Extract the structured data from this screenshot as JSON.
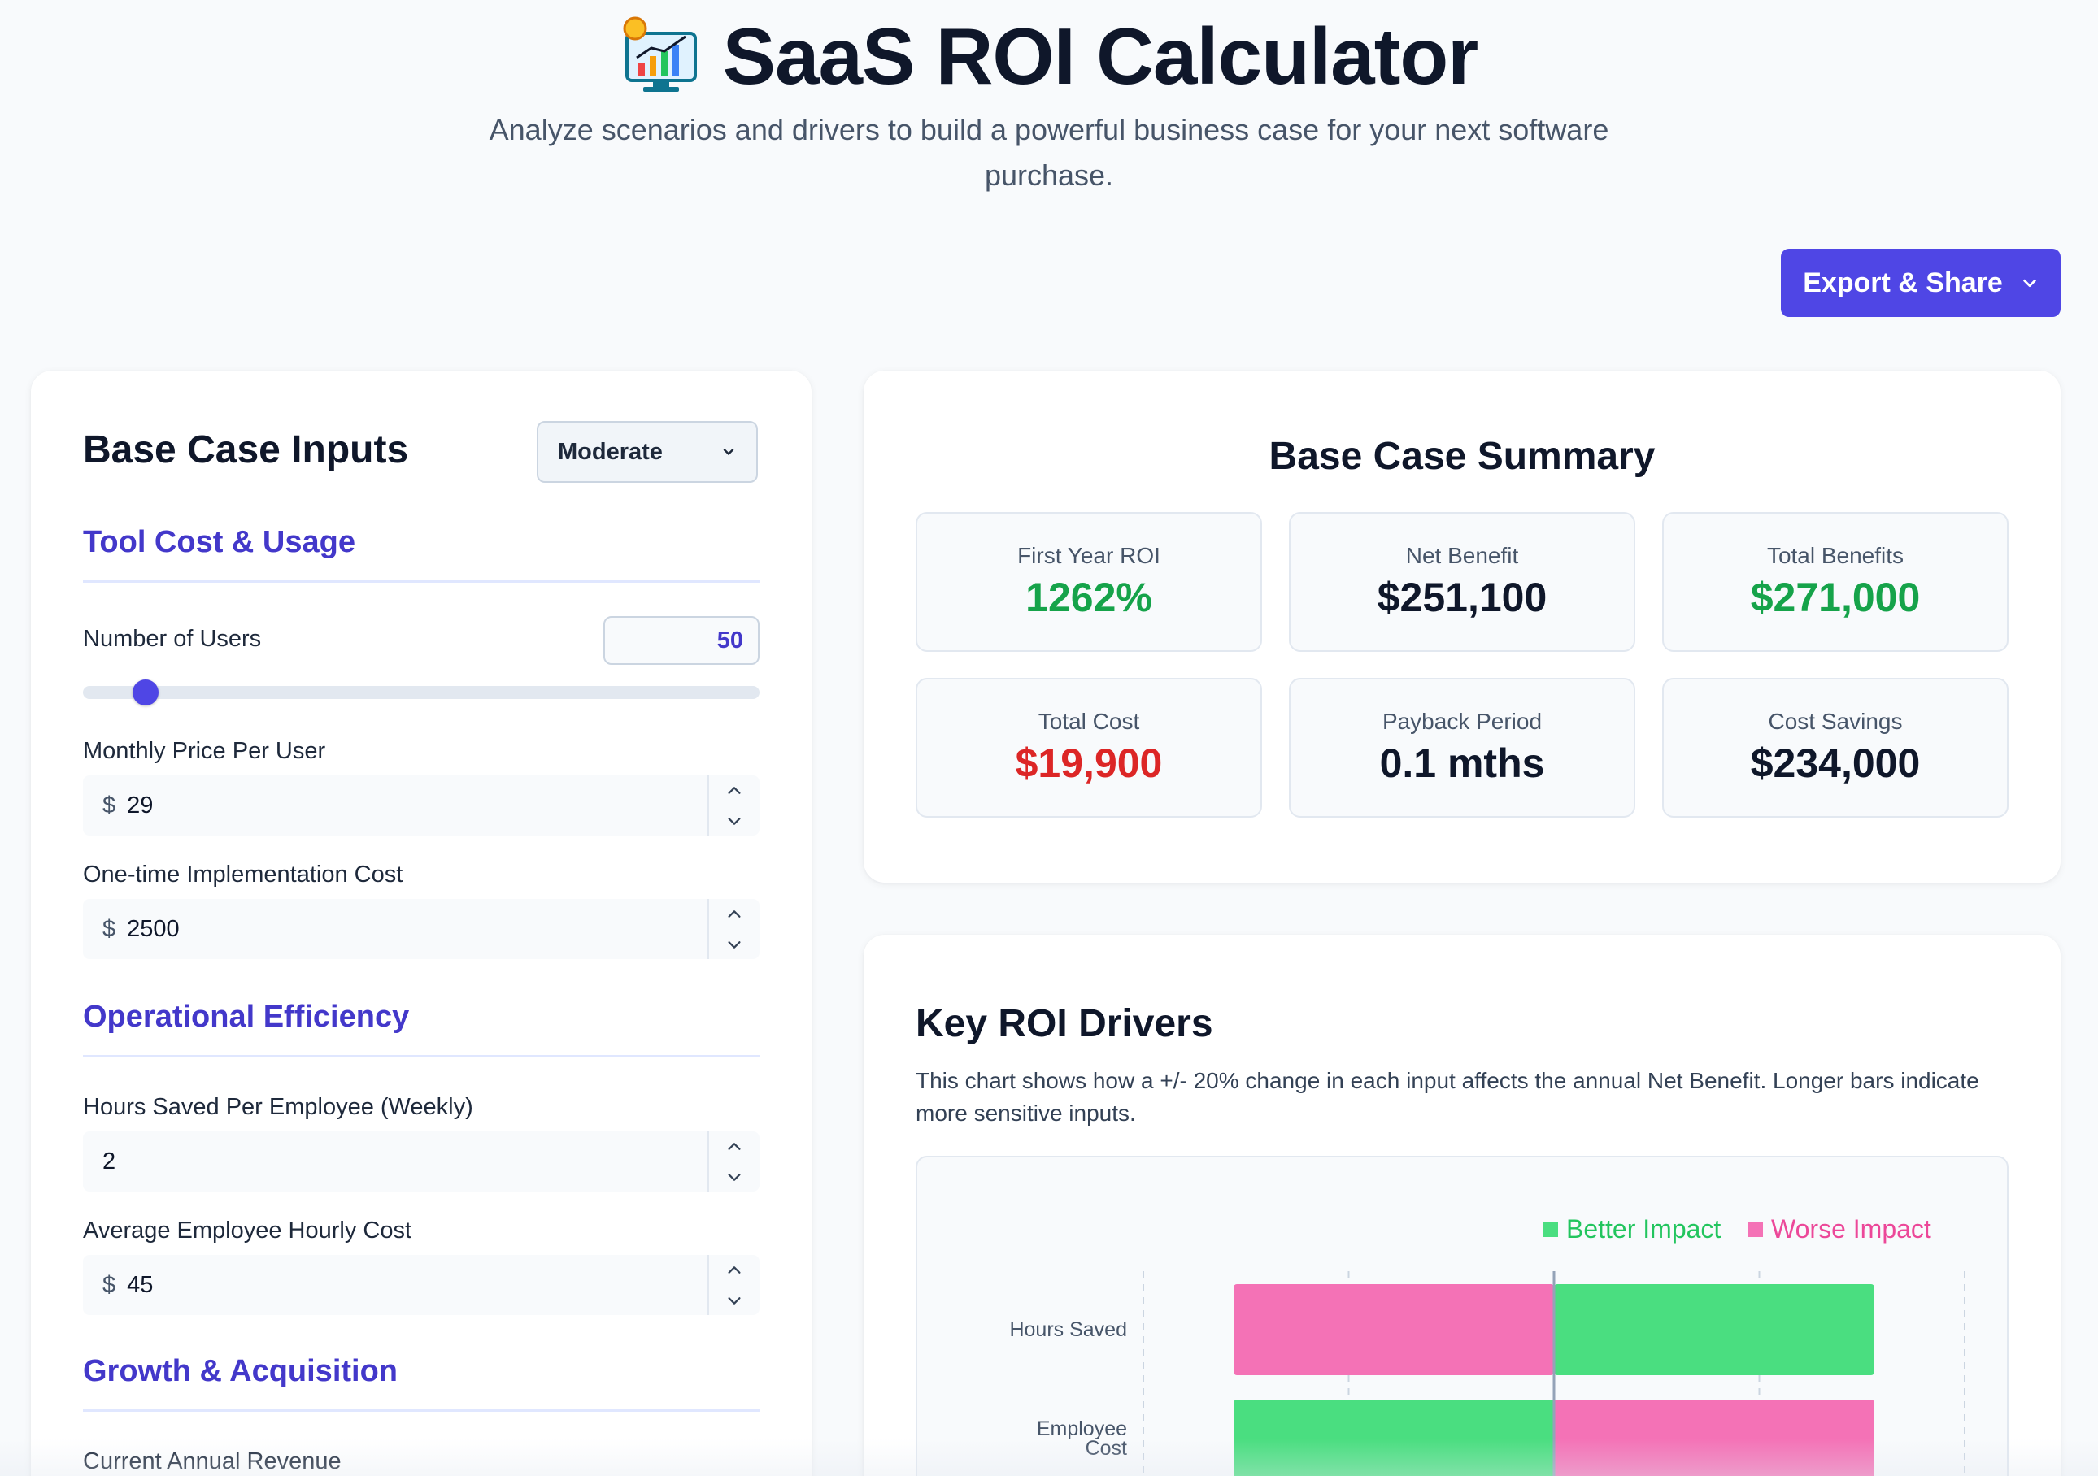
{
  "header": {
    "title": "SaaS ROI Calculator",
    "subtitle": "Analyze scenarios and drivers to build a powerful business case for your next software purchase.",
    "title_icon": "chart-monitor-icon"
  },
  "toolbar": {
    "export_label": "Export & Share"
  },
  "inputs": {
    "title": "Base Case Inputs",
    "scenario_selected": "Moderate",
    "sections": {
      "tool": "Tool Cost & Usage",
      "ops": "Operational Efficiency",
      "growth": "Growth & Acquisition"
    },
    "users_label": "Number of Users",
    "users_value": "50",
    "users_slider_fraction": 0.066,
    "price_label": "Monthly Price Per User",
    "price_value": "29",
    "impl_label": "One-time Implementation Cost",
    "impl_value": "2500",
    "hours_label": "Hours Saved Per Employee (Weekly)",
    "hours_value": "2",
    "hourly_label": "Average Employee Hourly Cost",
    "hourly_value": "45",
    "revenue_label": "Current Annual Revenue",
    "currency_prefix": "$"
  },
  "summary": {
    "title": "Base Case Summary",
    "metrics": [
      {
        "label": "First Year ROI",
        "value": "1262%",
        "tone": "green"
      },
      {
        "label": "Net Benefit",
        "value": "$251,100",
        "tone": "dark"
      },
      {
        "label": "Total Benefits",
        "value": "$271,000",
        "tone": "green"
      },
      {
        "label": "Total Cost",
        "value": "$19,900",
        "tone": "red"
      },
      {
        "label": "Payback Period",
        "value": "0.1 mths",
        "tone": "dark"
      },
      {
        "label": "Cost Savings",
        "value": "$234,000",
        "tone": "dark"
      }
    ]
  },
  "drivers": {
    "title": "Key ROI Drivers",
    "description": "This chart shows how a +/- 20% change in each input affects the annual Net Benefit. Longer bars indicate more sensitive inputs."
  },
  "colors": {
    "accent": "#4f46e5",
    "better": "#4ade80",
    "worse": "#f472b6",
    "green_text": "#16a34a",
    "red_text": "#dc2626"
  },
  "chart_data": {
    "type": "bar",
    "orientation": "horizontal-tornado",
    "legend": [
      "Better Impact",
      "Worse Impact"
    ],
    "legend_position": "top-right",
    "categories": [
      "Hours Saved",
      "Employee Cost"
    ],
    "series": [
      {
        "name": "Better Impact",
        "values": [
          46800,
          46800
        ]
      },
      {
        "name": "Worse Impact",
        "values": [
          -46800,
          -46800
        ]
      }
    ],
    "better_side": [
      "right",
      "left"
    ],
    "xlim": [
      -60000,
      60000
    ],
    "grid": true
  }
}
